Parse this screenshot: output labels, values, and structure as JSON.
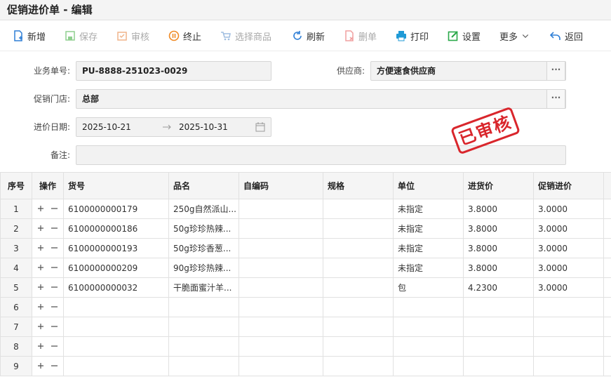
{
  "header": {
    "title": "促销进价单 - 编辑"
  },
  "toolbar": [
    {
      "label": "新增",
      "enabled": true
    },
    {
      "label": "保存",
      "enabled": false
    },
    {
      "label": "审核",
      "enabled": false
    },
    {
      "label": "终止",
      "enabled": true
    },
    {
      "label": "选择商品",
      "enabled": false
    },
    {
      "label": "刷新",
      "enabled": true
    },
    {
      "label": "删单",
      "enabled": false
    },
    {
      "label": "打印",
      "enabled": true
    },
    {
      "label": "设置",
      "enabled": true
    },
    {
      "label": "更多",
      "enabled": true
    },
    {
      "label": "返回",
      "enabled": true
    }
  ],
  "form": {
    "order_no": {
      "label": "业务单号:",
      "value": "PU-8888-251023-0029"
    },
    "supplier": {
      "label": "供应商:",
      "value": "方便速食供应商"
    },
    "store": {
      "label": "促销门店:",
      "value": "总部"
    },
    "date": {
      "label": "进价日期:",
      "start": "2025-10-21",
      "end": "2025-10-31"
    },
    "remark": {
      "label": "备注:"
    }
  },
  "stamp": "已审核",
  "table": {
    "columns": {
      "no": "序号",
      "op": "操作",
      "code": "货号",
      "name": "品名",
      "own_code": "自编码",
      "spec": "规格",
      "unit": "单位",
      "price": "进货价",
      "promo_price": "促销进价"
    },
    "rows": [
      {
        "no": 1,
        "code": "6100000000179",
        "name": "250g自然派山...",
        "unit": "未指定",
        "price": "3.8000",
        "promo_price": "3.0000"
      },
      {
        "no": 2,
        "code": "6100000000186",
        "name": "50g珍珍热辣...",
        "unit": "未指定",
        "price": "3.8000",
        "promo_price": "3.0000"
      },
      {
        "no": 3,
        "code": "6100000000193",
        "name": "50g珍珍香葱...",
        "unit": "未指定",
        "price": "3.8000",
        "promo_price": "3.0000"
      },
      {
        "no": 4,
        "code": "6100000000209",
        "name": "90g珍珍热辣...",
        "unit": "未指定",
        "price": "3.8000",
        "promo_price": "3.0000"
      },
      {
        "no": 5,
        "code": "6100000000032",
        "name": "干脆面蜜汁羊...",
        "unit": "包",
        "price": "4.2300",
        "promo_price": "3.0000"
      },
      {
        "no": 6
      },
      {
        "no": 7
      },
      {
        "no": 8
      },
      {
        "no": 9
      }
    ]
  }
}
